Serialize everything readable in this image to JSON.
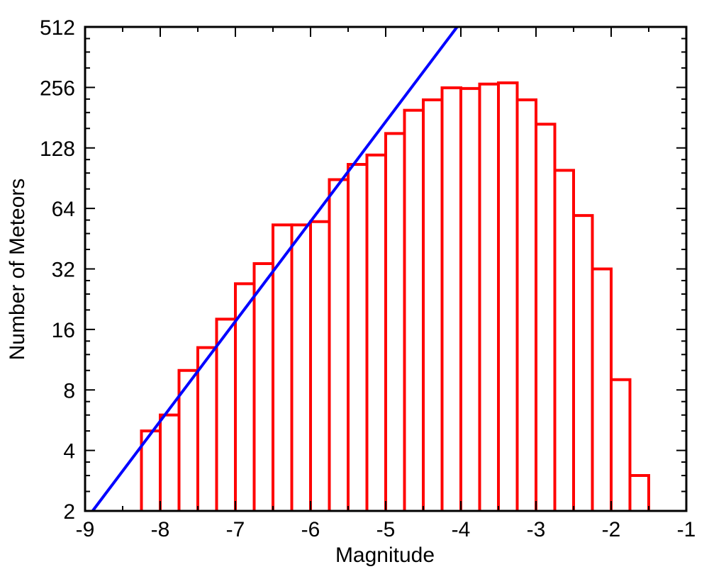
{
  "chart_data": {
    "type": "bar",
    "title": "",
    "xlabel": "Magnitude",
    "ylabel": "Number of Meteors",
    "x_scale": "linear",
    "y_scale": "log2",
    "xlim": [
      -9,
      -1
    ],
    "ylim": [
      2,
      512
    ],
    "x_ticks": [
      -9,
      -8,
      -7,
      -6,
      -5,
      -4,
      -3,
      -2,
      -1
    ],
    "x_tick_labels": [
      "-9",
      "-8",
      "-7",
      "-6",
      "-5",
      "-4",
      "-3",
      "-2",
      "-1"
    ],
    "y_ticks": [
      2,
      4,
      8,
      16,
      32,
      64,
      128,
      256,
      512
    ],
    "y_tick_labels": [
      "2",
      "4",
      "8",
      "16",
      "32",
      "64",
      "128",
      "256",
      "512"
    ],
    "grid": false,
    "legend": "none",
    "bin_width": 0.25,
    "bars": {
      "name": "",
      "color": "#ff0000",
      "bins": [
        {
          "x0": -8.25,
          "x1": -8.0,
          "value": 5
        },
        {
          "x0": -8.0,
          "x1": -7.75,
          "value": 6
        },
        {
          "x0": -7.75,
          "x1": -7.5,
          "value": 10
        },
        {
          "x0": -7.5,
          "x1": -7.25,
          "value": 13
        },
        {
          "x0": -7.25,
          "x1": -7.0,
          "value": 18
        },
        {
          "x0": -7.0,
          "x1": -6.75,
          "value": 27
        },
        {
          "x0": -6.75,
          "x1": -6.5,
          "value": 34
        },
        {
          "x0": -6.5,
          "x1": -6.25,
          "value": 53
        },
        {
          "x0": -6.25,
          "x1": -6.0,
          "value": 53
        },
        {
          "x0": -6.0,
          "x1": -5.75,
          "value": 55
        },
        {
          "x0": -5.75,
          "x1": -5.5,
          "value": 89
        },
        {
          "x0": -5.5,
          "x1": -5.25,
          "value": 106
        },
        {
          "x0": -5.25,
          "x1": -5.0,
          "value": 118
        },
        {
          "x0": -5.0,
          "x1": -4.75,
          "value": 151
        },
        {
          "x0": -4.75,
          "x1": -4.5,
          "value": 197
        },
        {
          "x0": -4.5,
          "x1": -4.25,
          "value": 222
        },
        {
          "x0": -4.25,
          "x1": -4.0,
          "value": 255
        },
        {
          "x0": -4.0,
          "x1": -3.75,
          "value": 253
        },
        {
          "x0": -3.75,
          "x1": -3.5,
          "value": 266
        },
        {
          "x0": -3.5,
          "x1": -3.25,
          "value": 270
        },
        {
          "x0": -3.25,
          "x1": -3.0,
          "value": 222
        },
        {
          "x0": -3.0,
          "x1": -2.75,
          "value": 168
        },
        {
          "x0": -2.75,
          "x1": -2.5,
          "value": 99
        },
        {
          "x0": -2.5,
          "x1": -2.25,
          "value": 59
        },
        {
          "x0": -2.25,
          "x1": -2.0,
          "value": 32
        },
        {
          "x0": -2.0,
          "x1": -1.75,
          "value": 9
        },
        {
          "x0": -1.75,
          "x1": -1.5,
          "value": 3
        }
      ]
    },
    "fit_line": {
      "name": "",
      "color": "#0000ff",
      "points": [
        {
          "x": -8.9,
          "y": 2
        },
        {
          "x": -4.05,
          "y": 512
        }
      ]
    }
  }
}
